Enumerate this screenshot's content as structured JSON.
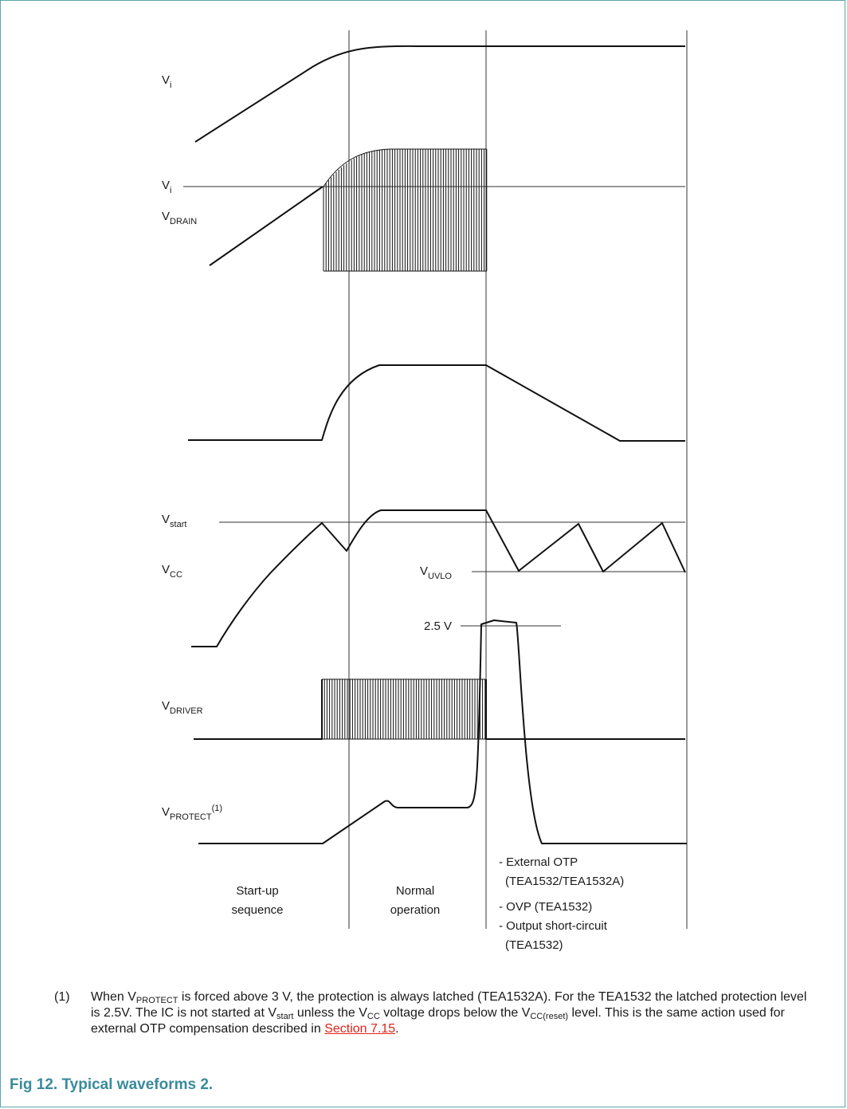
{
  "diagram": {
    "signals": {
      "vi": {
        "main": "V",
        "sub": "i"
      },
      "vi_ref": {
        "main": "V",
        "sub": "i"
      },
      "vdrain": {
        "main": "V",
        "sub": "DRAIN"
      },
      "vstart": {
        "main": "V",
        "sub": "start"
      },
      "vcc": {
        "main": "V",
        "sub": "CC"
      },
      "vuvlo": {
        "main": "V",
        "sub": "UVLO"
      },
      "vdriver": {
        "main": "V",
        "sub": "DRIVER"
      },
      "vprotect": {
        "main": "V",
        "sub": "PROTECT",
        "sup": "(1)"
      }
    },
    "level_2_5v": "2.5 V",
    "phases": {
      "startup": [
        "Start-up",
        "sequence"
      ],
      "normal": [
        "Normal",
        "operation"
      ],
      "protection": [
        "- External OTP",
        "(TEA1532/TEA1532A)",
        "- OVP (TEA1532)",
        "- Output short-circuit",
        "(TEA1532)"
      ]
    }
  },
  "footnote": {
    "number": "(1)",
    "p1": "When V",
    "s1": "PROTECT",
    "p2": " is forced above 3 V, the protection is always latched (TEA1532A). For the TEA1532 the latched protection level is 2.5V. The IC is not started at V",
    "s2": "start",
    "p3": " unless the V",
    "s3": "CC",
    "p4": " voltage drops below the V",
    "s4": "CC(reset)",
    "p5": " level. This is the same action used for external OTP compensation described in ",
    "link": "Section 7.15",
    "p6": "."
  },
  "caption": "Fig 12.  Typical waveforms 2."
}
